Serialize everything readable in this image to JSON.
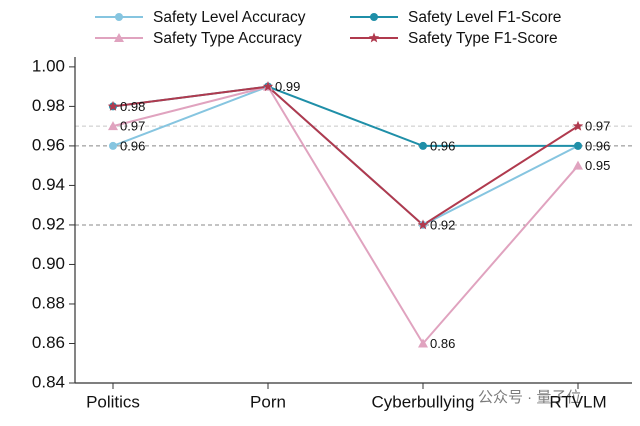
{
  "chart_data": {
    "type": "line",
    "categories": [
      "Politics",
      "Porn",
      "Cyberbullying",
      "RTVLM"
    ],
    "series": [
      {
        "name": "Safety Level Accuracy",
        "color": "#86c5e0",
        "marker": "circle",
        "values": [
          0.96,
          0.99,
          0.92,
          0.96
        ],
        "value_labels": [
          "0.96",
          null,
          "0.92",
          null
        ]
      },
      {
        "name": "Safety Level F1-Score",
        "color": "#1f8fa8",
        "marker": "circle",
        "values": [
          0.98,
          0.99,
          0.96,
          0.96
        ],
        "value_labels": [
          null,
          null,
          "0.96",
          "0.96"
        ]
      },
      {
        "name": "Safety Type Accuracy",
        "color": "#e0a3bf",
        "marker": "triangle",
        "values": [
          0.97,
          0.99,
          0.86,
          0.95
        ],
        "value_labels": [
          "0.97",
          null,
          "0.86",
          "0.95"
        ]
      },
      {
        "name": "Safety Type F1-Score",
        "color": "#b03a4e",
        "marker": "star",
        "values": [
          0.98,
          0.99,
          0.92,
          0.97
        ],
        "value_labels": [
          "0.98",
          "0.99",
          null,
          "0.97"
        ]
      }
    ],
    "ylim": [
      0.84,
      1.005
    ],
    "yticks": [
      {
        "value": 0.84,
        "label": "0.84"
      },
      {
        "value": 0.86,
        "label": "0.86"
      },
      {
        "value": 0.88,
        "label": "0.88"
      },
      {
        "value": 0.9,
        "label": "0.90"
      },
      {
        "value": 0.92,
        "label": "0.92"
      },
      {
        "value": 0.94,
        "label": "0.94"
      },
      {
        "value": 0.96,
        "label": "0.96"
      },
      {
        "value": 0.98,
        "label": "0.98"
      },
      {
        "value": 1.0,
        "label": "1.00"
      }
    ],
    "hlines": [
      {
        "value": 0.97,
        "color": "#c8c8c8"
      },
      {
        "value": 0.96,
        "color": "#888888"
      },
      {
        "value": 0.92,
        "color": "#888888"
      }
    ],
    "watermark": "公众号 · 量子位"
  }
}
